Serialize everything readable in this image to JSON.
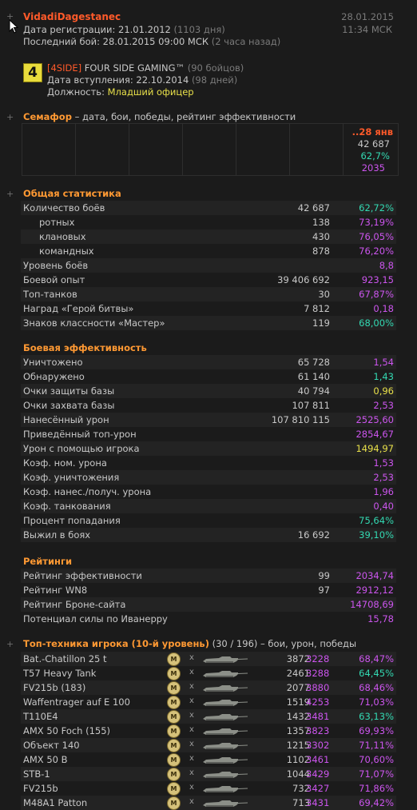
{
  "player": {
    "name": "VidadiDagestanec",
    "reg_label": "Дата регистрации: 21.01.2012",
    "reg_days": "(1103 дня)",
    "last_battle_label": "Последний бой: 28.01.2015 09:00 МСК",
    "last_battle_ago": "(2 часа назад)",
    "date": "28.01.2015",
    "time": "11:34 МСК"
  },
  "clan": {
    "logo_text": "4",
    "tag": "[4SIDE]",
    "name": "FOUR SIDE GAMING™",
    "members": "(90 бойцов)",
    "joined_label": "Дата вступления: 22.10.2014",
    "joined_days": "(98 дней)",
    "position_label": "Должность:",
    "position": "Младший офицер"
  },
  "semaphore": {
    "title": "Семафор",
    "subtitle": "– дата, бои, победы, рейтинг эффективности",
    "date": "..28 янв",
    "battles": "42 687",
    "wins": "62,7%",
    "rating": "2035"
  },
  "general": {
    "title": "Общая статистика",
    "rows": [
      {
        "label": "Количество боёв",
        "value": "42 687",
        "pct": "62,72%",
        "color": "#33d9b2"
      },
      {
        "label": "ротных",
        "value": "138",
        "pct": "73,19%",
        "color": "#cc55ee"
      },
      {
        "label": "клановых",
        "value": "430",
        "pct": "76,05%",
        "color": "#cc55ee"
      },
      {
        "label": "командных",
        "value": "878",
        "pct": "76,20%",
        "color": "#cc55ee"
      },
      {
        "label": "Уровень боёв",
        "value": "",
        "pct": "8,8",
        "color": "#cc55ee"
      },
      {
        "label": "Боевой опыт",
        "value": "39 406 692",
        "pct": "923,15",
        "color": "#cc55ee"
      },
      {
        "label": "Топ-танков",
        "value": "30",
        "pct": "67,87%",
        "color": "#cc55ee"
      },
      {
        "label": "Наград «Герой битвы»",
        "value": "7 812",
        "pct": "0,18",
        "color": "#cc55ee"
      },
      {
        "label": "Знаков классности «Мастер»",
        "value": "119",
        "pct": "68,00%",
        "color": "#33d9b2"
      }
    ]
  },
  "efficiency": {
    "title": "Боевая эффективность",
    "rows": [
      {
        "label": "Уничтожено",
        "value": "65 728",
        "pct": "1,54",
        "color": "#cc55ee"
      },
      {
        "label": "Обнаружено",
        "value": "61 140",
        "pct": "1,43",
        "color": "#33d9b2"
      },
      {
        "label": "Очки защиты базы",
        "value": "40 794",
        "pct": "0,96",
        "color": "#e8e04a"
      },
      {
        "label": "Очки захвата базы",
        "value": "107 811",
        "pct": "2,53",
        "color": "#cc55ee"
      },
      {
        "label": "Нанесённый урон",
        "value": "107 810 115",
        "pct": "2525,60",
        "color": "#cc55ee"
      },
      {
        "label": "Приведённый топ-урон",
        "value": "",
        "pct": "2854,67",
        "color": "#cc55ee"
      },
      {
        "label": "Урон с помощью игрока",
        "value": "",
        "pct": "1494,97",
        "color": "#e8e04a"
      },
      {
        "label": "Коэф. ном. урона",
        "value": "",
        "pct": "1,53",
        "color": "#cc55ee"
      },
      {
        "label": "Коэф. уничтожения",
        "value": "",
        "pct": "2,53",
        "color": "#cc55ee"
      },
      {
        "label": "Коэф. нанес./получ. урона",
        "value": "",
        "pct": "1,96",
        "color": "#cc55ee"
      },
      {
        "label": "Коэф. танкования",
        "value": "",
        "pct": "0,40",
        "color": "#cc55ee"
      },
      {
        "label": "Процент попадания",
        "value": "",
        "pct": "75,64%",
        "color": "#33d9b2"
      },
      {
        "label": "Выжил в боях",
        "value": "16 692",
        "pct": "39,10%",
        "color": "#33d9b2"
      }
    ]
  },
  "ratings": {
    "title": "Рейтинги",
    "rows": [
      {
        "label": "Рейтинг эффективности",
        "value": "99",
        "pct": "2034,74",
        "color": "#cc55ee"
      },
      {
        "label": "Рейтинг WN8",
        "value": "97",
        "pct": "2912,12",
        "color": "#cc55ee"
      },
      {
        "label": "Рейтинг Броне-сайта",
        "value": "",
        "pct": "14708,69",
        "color": "#cc55ee"
      },
      {
        "label": "Потенциал силы по Иванерру",
        "value": "",
        "pct": "15,78",
        "color": "#cc55ee"
      }
    ]
  },
  "tanks": {
    "title": "Топ-техника игрока (10-й уровень)",
    "count": "(30 / 196)",
    "subtitle": "– бои, урон, победы",
    "medal_text": "M",
    "x_mark": "x",
    "rows": [
      {
        "name": "Bat.-Chatillon 25 t",
        "battles": "3872",
        "damage": "3228",
        "win": "68,47%",
        "color": "#cc55ee"
      },
      {
        "name": "T57 Heavy Tank",
        "battles": "2461",
        "damage": "3288",
        "win": "64,45%",
        "color": "#33d9b2"
      },
      {
        "name": "FV215b (183)",
        "battles": "2077",
        "damage": "3880",
        "win": "68,46%",
        "color": "#cc55ee"
      },
      {
        "name": "Waffentrager auf E 100",
        "battles": "1519",
        "damage": "4253",
        "win": "71,03%",
        "color": "#cc55ee"
      },
      {
        "name": "T110E4",
        "battles": "1432",
        "damage": "3481",
        "win": "63,13%",
        "color": "#33d9b2"
      },
      {
        "name": "AMX 50 Foch (155)",
        "battles": "1357",
        "damage": "3823",
        "win": "69,93%",
        "color": "#cc55ee"
      },
      {
        "name": "Объект 140",
        "battles": "1215",
        "damage": "3302",
        "win": "71,11%",
        "color": "#cc55ee"
      },
      {
        "name": "AMX 50 B",
        "battles": "1102",
        "damage": "3461",
        "win": "70,60%",
        "color": "#cc55ee"
      },
      {
        "name": "STB-1",
        "battles": "1044",
        "damage": "3429",
        "win": "71,07%",
        "color": "#cc55ee"
      },
      {
        "name": "FV215b",
        "battles": "732",
        "damage": "3427",
        "win": "71,86%",
        "color": "#cc55ee"
      },
      {
        "name": "M48A1 Patton",
        "battles": "713",
        "damage": "3431",
        "win": "69,42%",
        "color": "#cc55ee"
      }
    ]
  }
}
